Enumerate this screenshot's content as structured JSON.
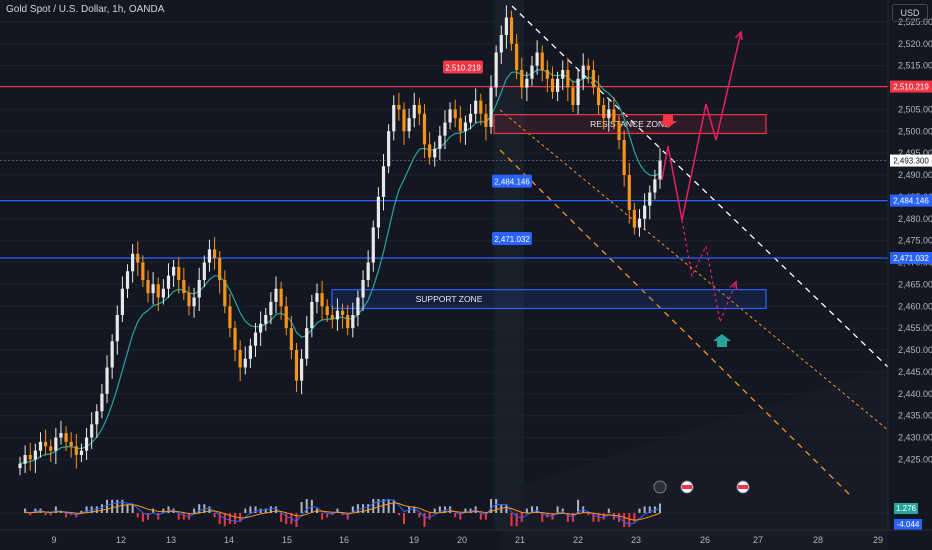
{
  "header": {
    "title": "Gold Spot / U.S. Dollar, 1h, OANDA",
    "currency": "USD"
  },
  "colors": {
    "background": "#131722",
    "up_candle": "#e8e8e8",
    "down_candle": "#f7931a",
    "ma_line": "#26a69a",
    "resistance_line": "#f23645",
    "support_line": "#2962ff",
    "channel_dash": "#f7931a",
    "arrow_red": "#e91e63",
    "arrow_teal": "#26a69a"
  },
  "chart_data": {
    "type": "candlestick",
    "symbol": "XAU/USD",
    "ylim": [
      2418,
      2530
    ],
    "yticks": [
      2425,
      2430,
      2435,
      2440,
      2445,
      2450,
      2455,
      2460,
      2465,
      2470,
      2475,
      2480,
      2485,
      2490,
      2495,
      2500,
      2505,
      2510,
      2515,
      2520,
      2525
    ],
    "ytick_labels": [
      "2,425.000",
      "2,430.000",
      "2,435.000",
      "2,440.000",
      "2,445.000",
      "2,450.000",
      "2,455.000",
      "2,460.000",
      "2,465.000",
      "2,470.000",
      "2,475.000",
      "2,480.000",
      "2,485.000",
      "2,490.000",
      "2,495.000",
      "2,500.000",
      "2,505.000",
      "2,510.000",
      "2,515.000",
      "2,520.000",
      "2,525.000"
    ],
    "xticks": [
      "9",
      "12",
      "13",
      "14",
      "15",
      "16",
      "19",
      "20",
      "21",
      "22",
      "23",
      "26",
      "27",
      "28",
      "29"
    ],
    "closes": [
      2424,
      2426,
      2425,
      2427,
      2429,
      2428,
      2427,
      2430,
      2431,
      2429,
      2428,
      2426,
      2427,
      2430,
      2433,
      2436,
      2440,
      2446,
      2452,
      2458,
      2464,
      2468,
      2472,
      2470,
      2466,
      2463,
      2465,
      2462,
      2464,
      2467,
      2469,
      2466,
      2463,
      2460,
      2462,
      2466,
      2470,
      2473,
      2471,
      2466,
      2460,
      2455,
      2450,
      2446,
      2448,
      2451,
      2454,
      2456,
      2458,
      2461,
      2464,
      2460,
      2455,
      2450,
      2443,
      2448,
      2455,
      2461,
      2463,
      2460,
      2458,
      2457,
      2459,
      2458,
      2455,
      2458,
      2462,
      2466,
      2470,
      2478,
      2485,
      2492,
      2500,
      2506,
      2505,
      2500,
      2503,
      2506,
      2504,
      2497,
      2494,
      2496,
      2499,
      2502,
      2505,
      2503,
      2500,
      2502,
      2504,
      2507,
      2504,
      2501,
      2510,
      2518,
      2522,
      2526,
      2520,
      2514,
      2510,
      2512,
      2515,
      2518,
      2514,
      2512,
      2509,
      2512,
      2514,
      2510,
      2506,
      2512,
      2515,
      2514,
      2510,
      2506,
      2503,
      2505,
      2502,
      2498,
      2490,
      2482,
      2478,
      2480,
      2483,
      2486,
      2489,
      2493.3
    ],
    "current_price": "2,493.300",
    "levels": [
      {
        "name": "resistance",
        "value": 2510.219,
        "label": "2,510.219"
      },
      {
        "name": "mid",
        "value": 2484.146,
        "label": "2,484.146"
      },
      {
        "name": "support",
        "value": 2471.032,
        "label": "2,471.032"
      }
    ],
    "zones": [
      {
        "label": "RESISTANCE ZONE",
        "from": 2499.5,
        "to": 2503.8
      },
      {
        "label": "SUPPORT ZONE",
        "from": 2459.5,
        "to": 2463.8
      }
    ],
    "macd": {
      "value_pos": "1.276",
      "value_neg": "-4.044"
    }
  }
}
